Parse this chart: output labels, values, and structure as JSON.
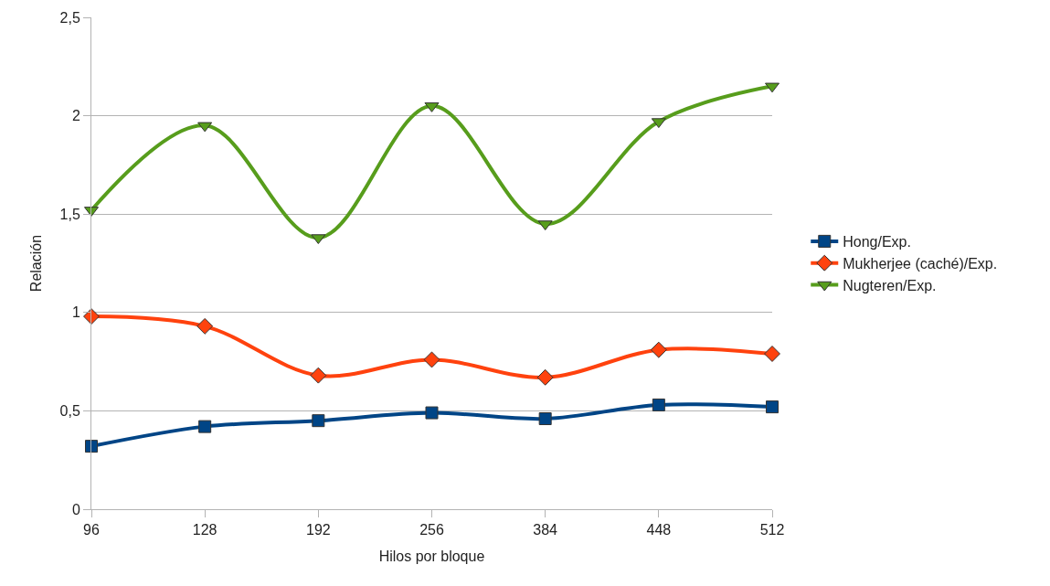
{
  "chart_data": {
    "type": "line",
    "xlabel": "Hilos por bloque",
    "ylabel": "Relación",
    "categories": [
      "96",
      "128",
      "192",
      "256",
      "384",
      "448",
      "512"
    ],
    "series": [
      {
        "name": "Hong/Exp.",
        "color": "#004586",
        "marker": "square",
        "values": [
          0.32,
          0.42,
          0.45,
          0.49,
          0.46,
          0.53,
          0.52
        ]
      },
      {
        "name": "Mukherjee (caché)/Exp.",
        "color": "#ff420e",
        "marker": "diamond",
        "values": [
          0.98,
          0.93,
          0.68,
          0.76,
          0.67,
          0.81,
          0.79
        ]
      },
      {
        "name": "Nugteren/Exp.",
        "color": "#579d1c",
        "marker": "triangle",
        "values": [
          1.52,
          1.95,
          1.38,
          2.05,
          1.45,
          1.97,
          2.15
        ]
      }
    ],
    "ylim": [
      0,
      2.5
    ],
    "yticks": [
      0,
      {
        "value": 0.5,
        "label": "0,5"
      },
      1,
      {
        "value": 1.5,
        "label": "1,5"
      },
      2,
      {
        "value": 2.5,
        "label": "2,5"
      }
    ],
    "grid": "y",
    "legend": "right",
    "line_style": "solid"
  }
}
